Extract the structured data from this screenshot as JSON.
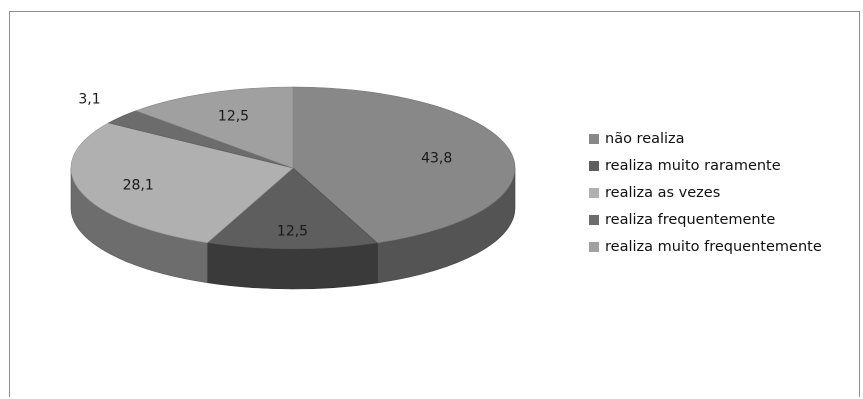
{
  "chart_data": {
    "type": "pie",
    "three_d": true,
    "title": "",
    "categories": [
      "não realiza",
      "realiza muito raramente",
      "realiza as vezes",
      "realiza frequentemente",
      "realiza muito frequentemente"
    ],
    "values": [
      43.8,
      12.5,
      28.1,
      3.1,
      12.5
    ],
    "value_labels": [
      "43,8",
      "12,5",
      "28,1",
      "3,1",
      "12,5"
    ],
    "colors": [
      "#888888",
      "#5e5e5e",
      "#b0b0b0",
      "#6c6c6c",
      "#a0a0a0"
    ],
    "legend_position": "right",
    "start": "top-center",
    "direction": "clockwise"
  }
}
